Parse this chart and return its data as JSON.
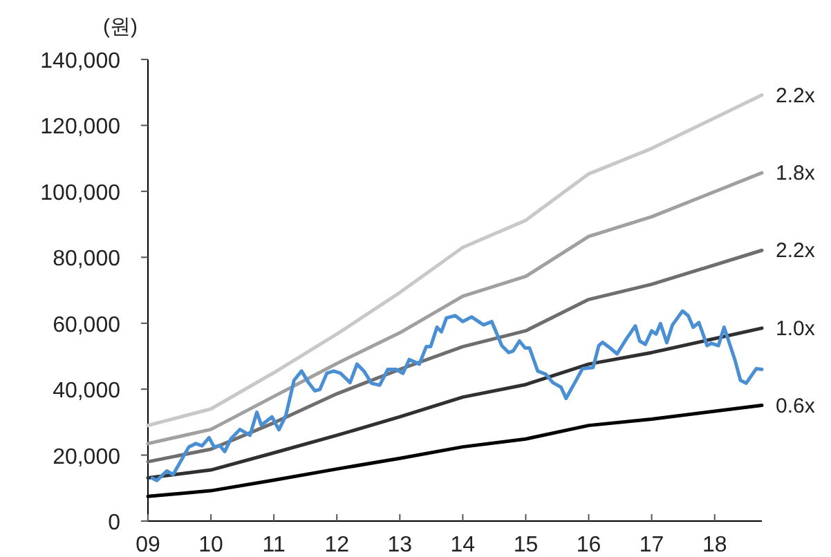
{
  "chart_data": {
    "type": "line",
    "ylabel": "(원)",
    "xlim": [
      9,
      18.75
    ],
    "xticks": [
      {
        "value": 9,
        "label": "09"
      },
      10,
      11,
      12,
      13,
      14,
      15,
      16,
      17,
      18
    ],
    "ylim": [
      0,
      140000
    ],
    "yticks": [
      {
        "value": 0,
        "label": "0"
      },
      {
        "value": 20000,
        "label": "20,000"
      },
      {
        "value": 40000,
        "label": "40,000"
      },
      {
        "value": 60000,
        "label": "60,000"
      },
      {
        "value": 80000,
        "label": "80,000"
      },
      {
        "value": 100000,
        "label": "100,000"
      },
      {
        "value": 120000,
        "label": "120,000"
      },
      {
        "value": 140000,
        "label": "140,000"
      }
    ],
    "marker": "none",
    "line_style": "solid",
    "series": [
      {
        "name": "2.2x",
        "color": "#c8c8c8",
        "x": [
          9,
          10,
          11,
          12,
          13,
          14,
          15,
          16,
          17,
          18.75
        ],
        "values": [
          29000,
          34000,
          45000,
          56700,
          69300,
          83000,
          91200,
          105300,
          113000,
          129200
        ]
      },
      {
        "name": "1.8x",
        "color": "#a0a0a0",
        "x": [
          9,
          10,
          11,
          12,
          13,
          14,
          15,
          16,
          17,
          18.75
        ],
        "values": [
          23500,
          27800,
          37800,
          47800,
          57100,
          68200,
          74200,
          86300,
          92300,
          105600
        ]
      },
      {
        "name": "2.2x",
        "color": "#6e6e6e",
        "x": [
          9,
          10,
          11,
          12,
          13,
          14,
          15,
          16,
          17,
          18.75
        ],
        "values": [
          18000,
          21800,
          29800,
          38600,
          46000,
          52900,
          57700,
          67200,
          71800,
          82100
        ]
      },
      {
        "name": "1.0x",
        "color": "#303030",
        "x": [
          9,
          10,
          11,
          12,
          13,
          14,
          15,
          16,
          17,
          18.75
        ],
        "values": [
          13100,
          15500,
          20700,
          26000,
          31600,
          37600,
          41400,
          47600,
          51100,
          58500
        ]
      },
      {
        "name": "0.6x",
        "color": "#000000",
        "x": [
          9,
          10,
          11,
          12,
          13,
          14,
          15,
          16,
          17,
          18.75
        ],
        "values": [
          7500,
          9200,
          12400,
          15800,
          19000,
          22500,
          24900,
          29000,
          30900,
          35100
        ]
      },
      {
        "color": "#4a8fd4",
        "x": [
          9.07,
          9.14,
          9.3,
          9.4,
          9.65,
          9.76,
          9.86,
          9.97,
          10.05,
          10.14,
          10.22,
          10.32,
          10.46,
          10.62,
          10.73,
          10.8,
          10.97,
          11.08,
          11.19,
          11.32,
          11.44,
          11.55,
          11.65,
          11.73,
          11.84,
          11.95,
          12.06,
          12.21,
          12.32,
          12.43,
          12.55,
          12.68,
          12.81,
          12.94,
          13.05,
          13.15,
          13.31,
          13.42,
          13.49,
          13.59,
          13.66,
          13.74,
          13.88,
          14.0,
          14.14,
          14.33,
          14.46,
          14.62,
          14.73,
          14.8,
          14.9,
          14.99,
          15.06,
          15.19,
          15.32,
          15.43,
          15.56,
          15.64,
          15.78,
          15.9,
          16.07,
          16.16,
          16.22,
          16.34,
          16.45,
          16.6,
          16.74,
          16.81,
          16.9,
          17.0,
          17.07,
          17.14,
          17.24,
          17.33,
          17.49,
          17.58,
          17.66,
          17.75,
          17.88,
          17.95,
          18.06,
          18.15,
          18.32,
          18.41,
          18.5,
          18.66,
          18.75
        ],
        "values": [
          13000,
          12300,
          15200,
          14100,
          22500,
          23500,
          22800,
          25300,
          22500,
          22900,
          21100,
          25000,
          27800,
          26000,
          33000,
          29100,
          31600,
          27700,
          32000,
          42700,
          45500,
          42000,
          39500,
          39900,
          44800,
          45500,
          44800,
          42000,
          47600,
          45500,
          41800,
          41200,
          46000,
          46000,
          44800,
          49000,
          47600,
          52900,
          52900,
          58800,
          57400,
          61600,
          62300,
          60500,
          61900,
          59500,
          60500,
          53200,
          51100,
          51600,
          54600,
          52500,
          52500,
          45500,
          44500,
          42000,
          40600,
          37200,
          42000,
          46200,
          46600,
          53200,
          54200,
          52500,
          50700,
          55300,
          59200,
          54600,
          53600,
          57700,
          56700,
          59900,
          54100,
          59500,
          63700,
          62300,
          58800,
          60200,
          53200,
          53900,
          53200,
          58800,
          49000,
          42700,
          41800,
          46200,
          46000
        ]
      }
    ]
  }
}
